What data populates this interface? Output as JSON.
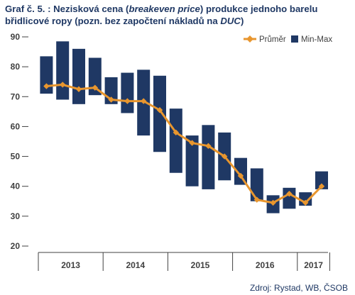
{
  "title": {
    "prefix": "Graf č. 5. : Nezisková cena (",
    "emph1": "breakeven price",
    "mid": ") produkce jednoho barelu břidlicové ropy (pozn. bez započtení nákladů na ",
    "emph2": "DUC",
    "suffix": ")"
  },
  "source": "Zdroj: Rystad, WB, ČSOB",
  "colors": {
    "bars": "#1f3864",
    "line": "#e8962e",
    "axis": "#404040",
    "grid": "#c0c0c0"
  },
  "chart_data": {
    "type": "bar",
    "ylim": [
      20,
      90
    ],
    "yticks": [
      "20",
      "30",
      "40",
      "50",
      "60",
      "70",
      "80",
      "90"
    ],
    "xgroups": [
      {
        "label": "2013",
        "count": 4
      },
      {
        "label": "2014",
        "count": 4
      },
      {
        "label": "2015",
        "count": 4
      },
      {
        "label": "2016",
        "count": 4
      },
      {
        "label": "2017",
        "count": 2
      }
    ],
    "series": [
      {
        "name": "Min-Max",
        "kind": "range-bar",
        "ranges": [
          [
            71,
            83.5
          ],
          [
            69,
            88.5
          ],
          [
            67.5,
            86
          ],
          [
            70.5,
            83
          ],
          [
            67.5,
            76.5
          ],
          [
            64.5,
            78
          ],
          [
            57,
            79
          ],
          [
            51.5,
            77
          ],
          [
            44.5,
            66
          ],
          [
            40,
            57
          ],
          [
            39,
            60.5
          ],
          [
            42,
            58
          ],
          [
            40.5,
            49.5
          ],
          [
            35,
            46
          ],
          [
            31,
            37
          ],
          [
            32.5,
            39.5
          ],
          [
            33.5,
            38
          ],
          [
            39,
            45
          ]
        ]
      },
      {
        "name": "Průměr",
        "kind": "line",
        "values": [
          73.5,
          74,
          72.5,
          73,
          69,
          68.5,
          68.5,
          65.5,
          58,
          54.5,
          53.5,
          50,
          43.5,
          35.5,
          34.5,
          37.5,
          34.5,
          40
        ]
      }
    ],
    "legend": {
      "position": "top-right",
      "items": [
        "Průměr",
        "Min-Max"
      ]
    },
    "grid": false
  }
}
